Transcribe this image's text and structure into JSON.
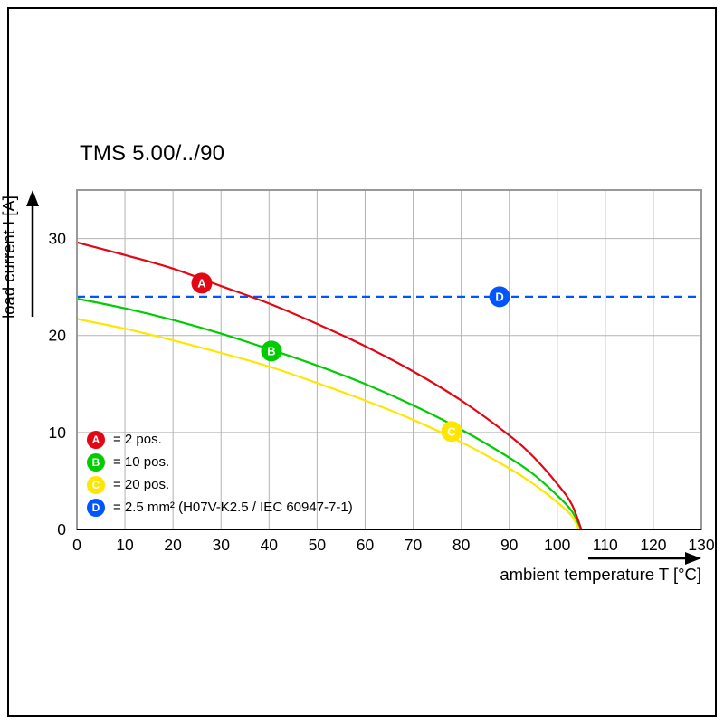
{
  "chart_data": {
    "type": "line",
    "title": "TMS 5.00/../90",
    "xlabel": "ambient temperature T [°C]",
    "ylabel": "load current I [A]",
    "xlim": [
      0,
      130
    ],
    "ylim": [
      0,
      35
    ],
    "x_ticks": [
      0,
      10,
      20,
      30,
      40,
      50,
      60,
      70,
      80,
      90,
      100,
      110,
      120,
      130
    ],
    "y_ticks": [
      0,
      10,
      20,
      30
    ],
    "grid_y_lines": [
      10,
      20,
      30
    ],
    "grid_color": "#b3b3b3",
    "border_color": "#999999",
    "legend_position": "inside-bottom-left",
    "series": [
      {
        "name": "A",
        "label": "= 2 pos.",
        "color": "#e30613",
        "line": "solid",
        "points": [
          [
            0,
            29.6
          ],
          [
            10,
            28.3
          ],
          [
            20,
            26.9
          ],
          [
            30,
            25.1
          ],
          [
            40,
            23.3
          ],
          [
            50,
            21.2
          ],
          [
            60,
            18.9
          ],
          [
            70,
            16.3
          ],
          [
            80,
            13.3
          ],
          [
            90,
            9.7
          ],
          [
            95,
            7.5
          ],
          [
            100,
            4.7
          ],
          [
            103,
            2.6
          ],
          [
            105,
            0
          ]
        ],
        "marker": {
          "x": 26,
          "y": 25.4
        }
      },
      {
        "name": "B",
        "label": "= 10 pos.",
        "color": "#00cc00",
        "line": "solid",
        "points": [
          [
            0,
            23.8
          ],
          [
            10,
            22.8
          ],
          [
            20,
            21.6
          ],
          [
            30,
            20.2
          ],
          [
            40,
            18.6
          ],
          [
            50,
            16.9
          ],
          [
            60,
            15.0
          ],
          [
            70,
            12.8
          ],
          [
            80,
            10.3
          ],
          [
            90,
            7.4
          ],
          [
            95,
            5.7
          ],
          [
            100,
            3.5
          ],
          [
            103,
            1.9
          ],
          [
            105,
            0
          ]
        ],
        "marker": {
          "x": 40.5,
          "y": 18.4
        }
      },
      {
        "name": "C",
        "label": "= 20 pos.",
        "color": "#ffe600",
        "line": "solid",
        "points": [
          [
            0,
            21.7
          ],
          [
            10,
            20.7
          ],
          [
            20,
            19.5
          ],
          [
            30,
            18.2
          ],
          [
            40,
            16.8
          ],
          [
            50,
            15.1
          ],
          [
            60,
            13.3
          ],
          [
            70,
            11.3
          ],
          [
            80,
            9.0
          ],
          [
            90,
            6.3
          ],
          [
            95,
            4.7
          ],
          [
            100,
            2.8
          ],
          [
            103,
            1.4
          ],
          [
            104.5,
            0
          ]
        ],
        "marker": {
          "x": 78,
          "y": 10.1
        }
      },
      {
        "name": "D",
        "label": "= 2.5 mm² (H07V-K2.5 / IEC 60947-7-1)",
        "color": "#0055ff",
        "line": "dashed",
        "points": [
          [
            0,
            24
          ],
          [
            130,
            24
          ]
        ],
        "marker": {
          "x": 88,
          "y": 24
        }
      }
    ]
  }
}
